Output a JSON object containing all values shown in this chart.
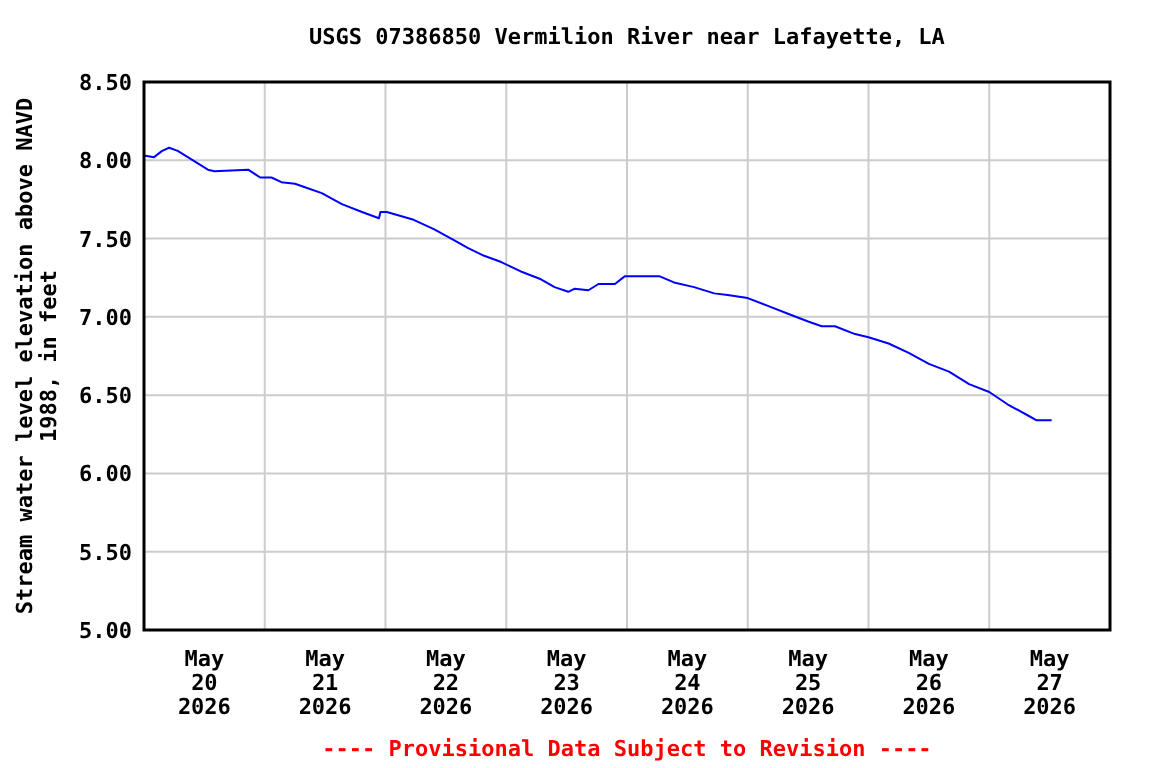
{
  "chart_data": {
    "type": "line",
    "title": "USGS 07386850 Vermilion River near Lafayette, LA",
    "ylabel": "Stream water level elevation above NAVD 1988, in feet",
    "annotations": [
      "---- Provisional Data Subject to Revision ----"
    ],
    "xlim": [
      "2026-05-20",
      "2026-05-28"
    ],
    "xticks": [
      {
        "value": "2026-05-20T12:00",
        "label": "May\n20\n2026"
      },
      {
        "value": "2026-05-21T00:00",
        "label": null
      },
      {
        "value": "2026-05-21T12:00",
        "label": "May\n21\n2026"
      },
      {
        "value": "2026-05-22T00:00",
        "label": null
      },
      {
        "value": "2026-05-22T12:00",
        "label": "May\n22\n2026"
      },
      {
        "value": "2026-05-23T00:00",
        "label": null
      },
      {
        "value": "2026-05-23T12:00",
        "label": "May\n23\n2026"
      },
      {
        "value": "2026-05-24T00:00",
        "label": null
      },
      {
        "value": "2026-05-24T12:00",
        "label": "May\n24\n2026"
      },
      {
        "value": "2026-05-25T00:00",
        "label": null
      },
      {
        "value": "2026-05-25T12:00",
        "label": "May\n25\n2026"
      },
      {
        "value": "2026-05-26T00:00",
        "label": null
      },
      {
        "value": "2026-05-26T12:00",
        "label": "May\n26\n2026"
      },
      {
        "value": "2026-05-27T00:00",
        "label": null
      },
      {
        "value": "2026-05-27T12:00",
        "label": "May\n27\n2026"
      }
    ],
    "ylim": [
      5,
      8.5
    ],
    "yticks": [
      {
        "value": 5,
        "label": "5.00"
      },
      {
        "value": 5.5,
        "label": "5.50"
      },
      {
        "value": 6,
        "label": "6.00"
      },
      {
        "value": 6.5,
        "label": "6.50"
      },
      {
        "value": 7,
        "label": "7.00"
      },
      {
        "value": 7.5,
        "label": "7.50"
      },
      {
        "value": 8,
        "label": "8.00"
      },
      {
        "value": 8.5,
        "label": "8.50"
      }
    ],
    "grid": true,
    "marker": "none",
    "line_style": "solid",
    "series": [
      {
        "color": "#0000ff",
        "x": [
          "2026-05-20T00:00",
          "2026-05-20T02:00",
          "2026-05-20T03:36",
          "2026-05-20T05:00",
          "2026-05-20T06:42",
          "2026-05-20T08:42",
          "2026-05-20T10:42",
          "2026-05-20T12:42",
          "2026-05-20T14:00",
          "2026-05-20T20:42",
          "2026-05-20T23:06",
          "2026-05-21T01:20",
          "2026-05-21T03:20",
          "2026-05-21T06:00",
          "2026-05-21T08:42",
          "2026-05-21T11:20",
          "2026-05-21T15:20",
          "2026-05-21T19:20",
          "2026-05-21T22:42",
          "2026-05-21T23:00",
          "2026-05-22T00:15",
          "2026-05-22T05:36",
          "2026-05-22T09:36",
          "2026-05-22T13:36",
          "2026-05-22T16:20",
          "2026-05-22T19:36",
          "2026-05-22T23:00",
          "2026-05-23T02:54",
          "2026-05-23T06:54",
          "2026-05-23T09:36",
          "2026-05-23T12:20",
          "2026-05-23T13:36",
          "2026-05-23T16:20",
          "2026-05-23T18:20",
          "2026-05-23T21:36",
          "2026-05-23T23:36",
          "2026-05-24T06:24",
          "2026-05-24T09:20",
          "2026-05-24T13:20",
          "2026-05-24T17:20",
          "2026-05-24T20:00",
          "2026-05-25T00:00",
          "2026-05-25T04:00",
          "2026-05-25T08:00",
          "2026-05-25T12:00",
          "2026-05-25T14:42",
          "2026-05-25T17:20",
          "2026-05-25T21:20",
          "2026-05-26T00:00",
          "2026-05-26T04:00",
          "2026-05-26T08:00",
          "2026-05-26T12:00",
          "2026-05-26T16:00",
          "2026-05-26T20:00",
          "2026-05-27T00:00",
          "2026-05-27T03:42",
          "2026-05-27T07:42",
          "2026-05-27T09:20",
          "2026-05-27T12:24"
        ],
        "values": [
          8.03,
          8.02,
          8.06,
          8.08,
          8.06,
          8.02,
          7.98,
          7.94,
          7.93,
          7.94,
          7.89,
          7.89,
          7.86,
          7.85,
          7.82,
          7.79,
          7.72,
          7.67,
          7.63,
          7.67,
          7.67,
          7.62,
          7.56,
          7.49,
          7.44,
          7.39,
          7.35,
          7.29,
          7.24,
          7.19,
          7.16,
          7.18,
          7.17,
          7.21,
          7.21,
          7.26,
          7.26,
          7.22,
          7.19,
          7.15,
          7.14,
          7.12,
          7.07,
          7.02,
          6.97,
          6.94,
          6.94,
          6.89,
          6.87,
          6.83,
          6.77,
          6.7,
          6.65,
          6.57,
          6.52,
          6.44,
          6.37,
          6.34,
          6.34
        ]
      }
    ]
  }
}
